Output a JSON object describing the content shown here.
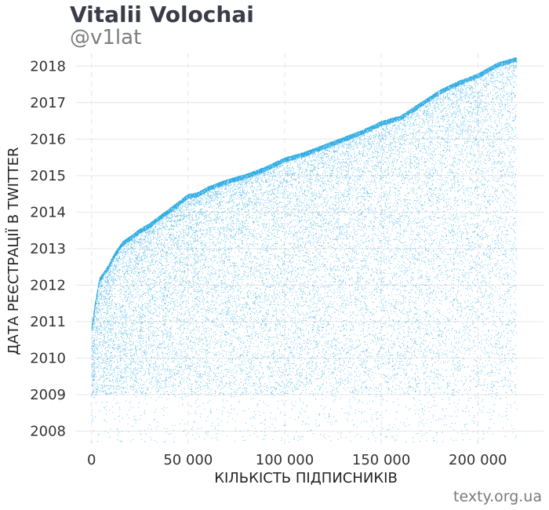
{
  "header": {
    "title": "Vitalii Volochai",
    "subtitle": "@v1lat"
  },
  "footer": {
    "credit": "texty.org.ua"
  },
  "chart_data": {
    "type": "scatter",
    "title": "Vitalii Volochai",
    "subtitle": "@v1lat",
    "xlabel": "КІЛЬКІСТЬ ПІДПИСНИКІВ",
    "ylabel": "ДАТА РЕЄСТРАЦІЇ В TWITTER",
    "xlim": [
      -8000,
      234000
    ],
    "ylim": [
      2007.6,
      2018.35
    ],
    "x_ticks": [
      0,
      50000,
      100000,
      150000,
      200000
    ],
    "x_tick_labels": [
      "0",
      "50 000",
      "100 000",
      "150 000",
      "200 000"
    ],
    "y_ticks": [
      2008,
      2009,
      2010,
      2011,
      2012,
      2013,
      2014,
      2015,
      2016,
      2017,
      2018
    ],
    "y_tick_labels": [
      "2008",
      "2009",
      "2010",
      "2011",
      "2012",
      "2013",
      "2014",
      "2015",
      "2016",
      "2017",
      "2018"
    ],
    "grid": true,
    "point_color": "#1aa3df",
    "n_points": 220000,
    "upper_envelope": {
      "x": [
        0,
        2000,
        4000,
        8000,
        12000,
        16000,
        20000,
        25000,
        30000,
        35000,
        40000,
        45000,
        50000,
        55000,
        60000,
        70000,
        80000,
        90000,
        100000,
        110000,
        120000,
        130000,
        140000,
        150000,
        160000,
        170000,
        180000,
        190000,
        200000,
        210000,
        220000
      ],
      "y": [
        2010.9,
        2011.6,
        2012.2,
        2012.5,
        2012.9,
        2013.2,
        2013.35,
        2013.55,
        2013.7,
        2013.9,
        2014.1,
        2014.3,
        2014.5,
        2014.55,
        2014.7,
        2014.9,
        2015.05,
        2015.25,
        2015.5,
        2015.65,
        2015.85,
        2016.05,
        2016.25,
        2016.5,
        2016.65,
        2017.0,
        2017.35,
        2017.6,
        2017.8,
        2018.1,
        2018.25
      ]
    },
    "dense_floor_year": 2009.0
  }
}
